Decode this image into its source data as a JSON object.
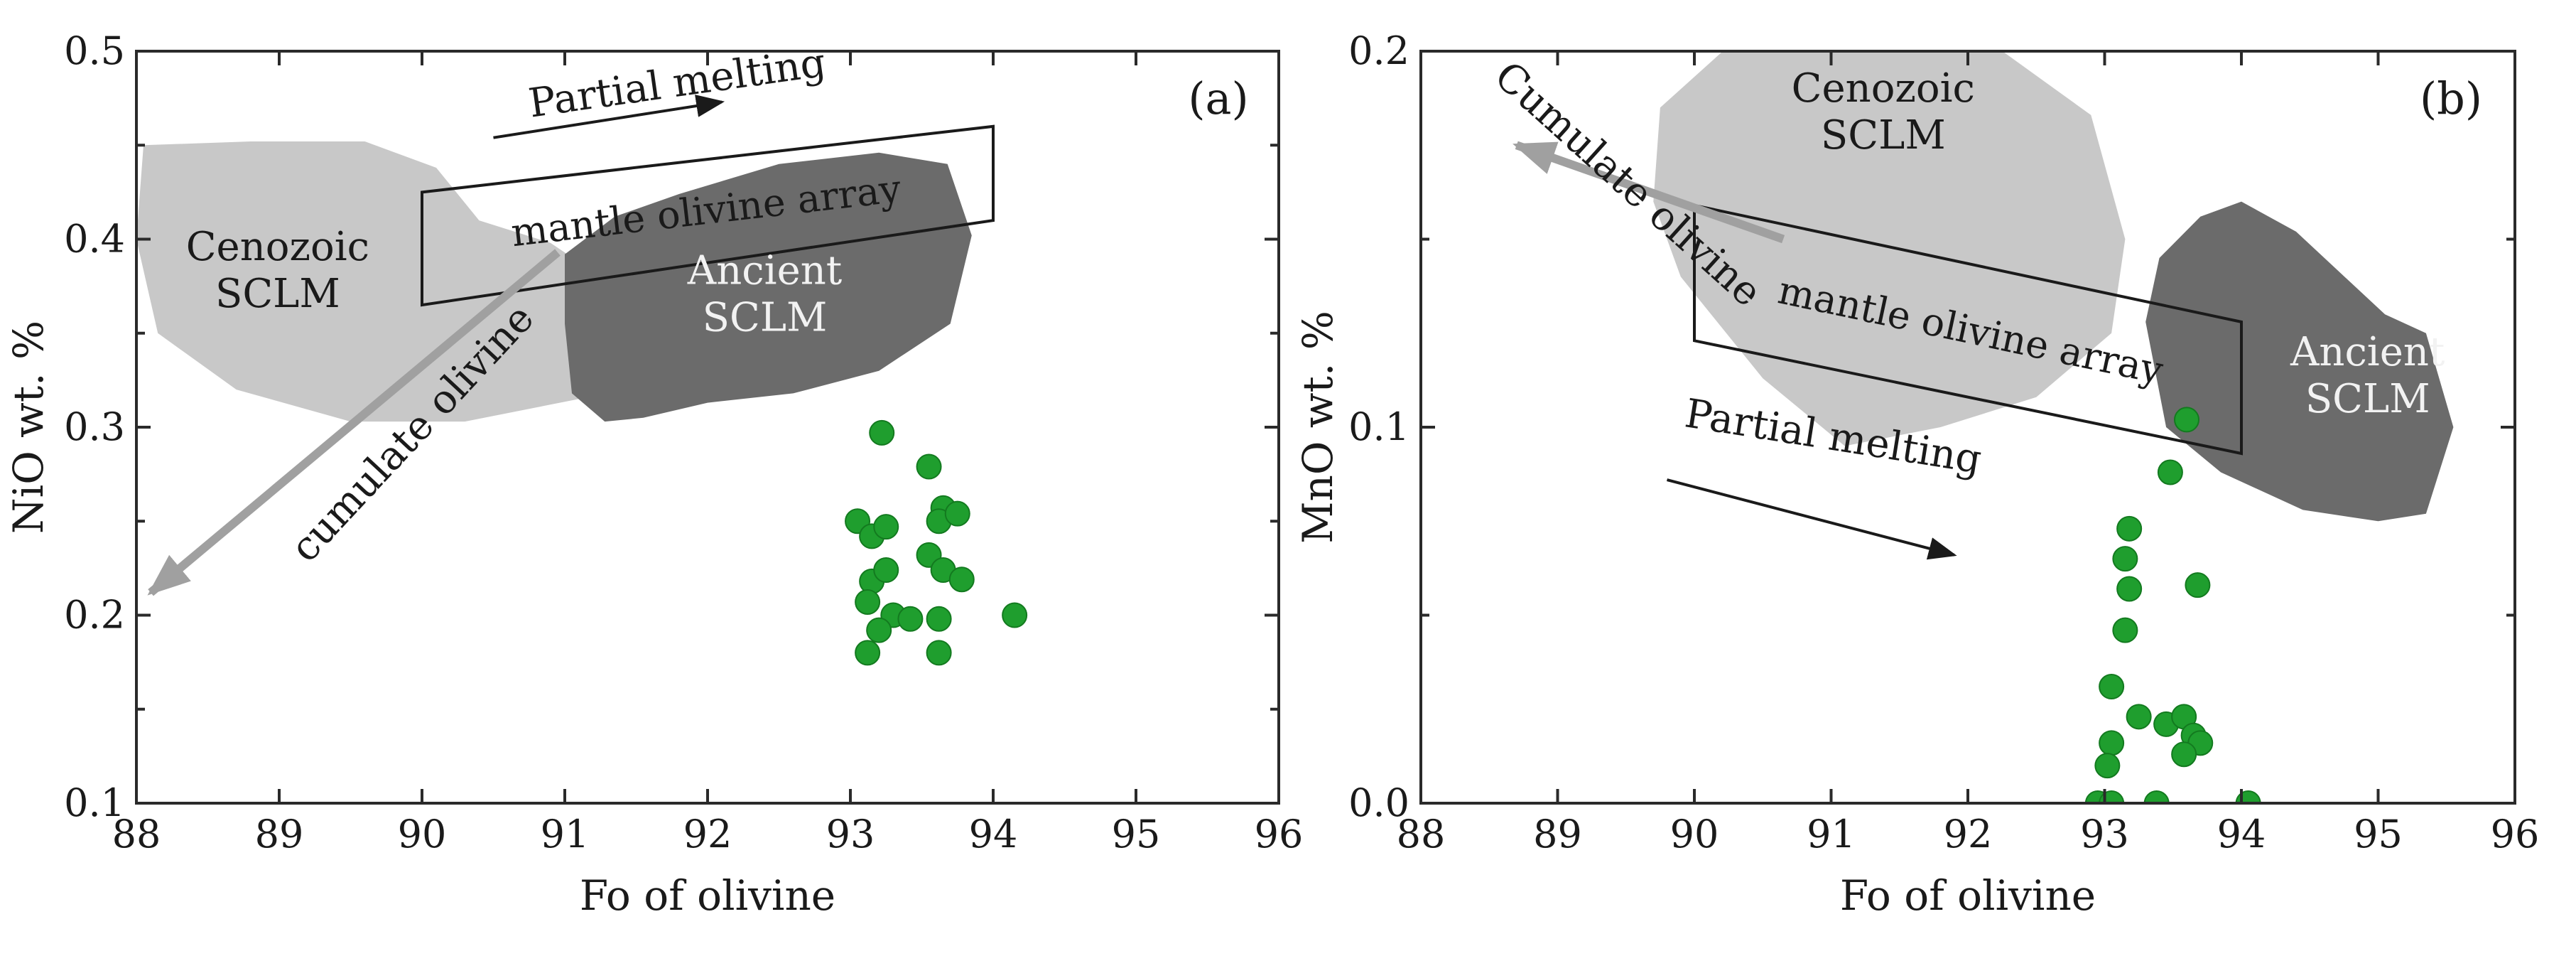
{
  "colors": {
    "point": "#1f9e2e",
    "point_edge": "#137a1f",
    "cenozoic": "#c8c8c8",
    "ancient": "#6b6b6b",
    "cumulate_arrow": "#a0a0a0",
    "text_dark": "#1a1a1a",
    "text_light": "#f2f2f2"
  },
  "chart_data": [
    {
      "panel": "(a)",
      "type": "scatter",
      "xlabel": "Fo of olivine",
      "ylabel": "NiO wt. %",
      "xlim": [
        88,
        96
      ],
      "ylim": [
        0.1,
        0.5
      ],
      "xticks": [
        88,
        89,
        90,
        91,
        92,
        93,
        94,
        95,
        96
      ],
      "yticks": [
        0.1,
        0.2,
        0.3,
        0.4,
        0.5
      ],
      "ytick_labels": [
        "0.1",
        "0.2",
        "0.3",
        "0.4",
        "0.5"
      ],
      "series": [
        {
          "name": "olivine analyses",
          "points": [
            [
              93.05,
              0.25
            ],
            [
              93.15,
              0.242
            ],
            [
              93.25,
              0.247
            ],
            [
              93.22,
              0.297
            ],
            [
              93.15,
              0.218
            ],
            [
              93.25,
              0.224
            ],
            [
              93.12,
              0.207
            ],
            [
              93.3,
              0.2
            ],
            [
              93.2,
              0.192
            ],
            [
              93.12,
              0.18
            ],
            [
              93.42,
              0.198
            ],
            [
              93.55,
              0.279
            ],
            [
              93.55,
              0.232
            ],
            [
              93.65,
              0.257
            ],
            [
              93.62,
              0.25
            ],
            [
              93.75,
              0.254
            ],
            [
              93.65,
              0.224
            ],
            [
              93.78,
              0.219
            ],
            [
              93.62,
              0.198
            ],
            [
              93.62,
              0.18
            ],
            [
              94.15,
              0.2
            ]
          ]
        }
      ],
      "fields": [
        {
          "name": "Cenozoic SCLM",
          "lines": [
            "Cenozoic",
            "SCLM"
          ],
          "polygon": [
            [
              88.05,
              0.45
            ],
            [
              88.8,
              0.452
            ],
            [
              89.6,
              0.452
            ],
            [
              90.1,
              0.438
            ],
            [
              90.4,
              0.41
            ],
            [
              90.9,
              0.398
            ],
            [
              91.35,
              0.375
            ],
            [
              91.4,
              0.338
            ],
            [
              91.1,
              0.315
            ],
            [
              90.3,
              0.303
            ],
            [
              89.5,
              0.303
            ],
            [
              88.7,
              0.32
            ],
            [
              88.15,
              0.35
            ],
            [
              88.0,
              0.4
            ]
          ]
        },
        {
          "name": "Ancient SCLM",
          "lines": [
            "Ancient",
            "SCLM"
          ],
          "polygon": [
            [
              91.0,
              0.392
            ],
            [
              91.35,
              0.412
            ],
            [
              91.8,
              0.424
            ],
            [
              92.5,
              0.44
            ],
            [
              93.2,
              0.446
            ],
            [
              93.68,
              0.44
            ],
            [
              93.85,
              0.402
            ],
            [
              93.7,
              0.355
            ],
            [
              93.2,
              0.33
            ],
            [
              92.6,
              0.318
            ],
            [
              92.0,
              0.313
            ],
            [
              91.55,
              0.305
            ],
            [
              91.28,
              0.303
            ],
            [
              91.05,
              0.318
            ],
            [
              91.0,
              0.355
            ]
          ]
        }
      ],
      "array": {
        "label": "mantle olivine array",
        "polygon": [
          [
            90.0,
            0.425
          ],
          [
            94.0,
            0.46
          ],
          [
            94.0,
            0.41
          ],
          [
            90.0,
            0.365
          ]
        ]
      },
      "annotations": [
        {
          "text": "Partial melting",
          "x": 91.8,
          "y": 0.476,
          "angle": -8,
          "arrow": [
            [
              90.5,
              0.454
            ],
            [
              92.1,
              0.473
            ]
          ],
          "style": "thin-black"
        },
        {
          "text": "cumulate olivine",
          "x": 90.0,
          "y": 0.292,
          "angle": -47,
          "arrow": [
            [
              90.95,
              0.393
            ],
            [
              88.1,
              0.212
            ]
          ],
          "style": "thick-gray"
        }
      ]
    },
    {
      "panel": "(b)",
      "type": "scatter",
      "xlabel": "Fo of olivine",
      "ylabel": "MnO wt. %",
      "xlim": [
        88,
        96
      ],
      "ylim": [
        0.0,
        0.2
      ],
      "xticks": [
        88,
        89,
        90,
        91,
        92,
        93,
        94,
        95,
        96
      ],
      "yticks": [
        0.0,
        0.1,
        0.2
      ],
      "ytick_labels": [
        "0.0",
        "0.1",
        "0.2"
      ],
      "series": [
        {
          "name": "olivine analyses",
          "points": [
            [
              93.6,
              0.102
            ],
            [
              93.48,
              0.088
            ],
            [
              93.18,
              0.073
            ],
            [
              93.15,
              0.065
            ],
            [
              93.18,
              0.057
            ],
            [
              93.68,
              0.058
            ],
            [
              93.15,
              0.046
            ],
            [
              93.05,
              0.031
            ],
            [
              93.25,
              0.023
            ],
            [
              93.45,
              0.021
            ],
            [
              93.58,
              0.023
            ],
            [
              93.65,
              0.018
            ],
            [
              93.7,
              0.016
            ],
            [
              93.58,
              0.013
            ],
            [
              93.05,
              0.016
            ],
            [
              93.02,
              0.01
            ],
            [
              92.95,
              0.0
            ],
            [
              93.05,
              0.0
            ],
            [
              93.38,
              0.0
            ],
            [
              94.05,
              0.0
            ]
          ]
        }
      ],
      "fields": [
        {
          "name": "Cenozoic SCLM",
          "lines": [
            "Cenozoic",
            "SCLM"
          ],
          "polygon": [
            [
              89.75,
              0.185
            ],
            [
              90.3,
              0.203
            ],
            [
              91.2,
              0.204
            ],
            [
              92.1,
              0.204
            ],
            [
              92.9,
              0.183
            ],
            [
              93.15,
              0.15
            ],
            [
              93.05,
              0.125
            ],
            [
              92.5,
              0.108
            ],
            [
              91.8,
              0.1
            ],
            [
              91.1,
              0.095
            ],
            [
              90.5,
              0.113
            ],
            [
              89.9,
              0.14
            ],
            [
              89.7,
              0.16
            ]
          ]
        },
        {
          "name": "Ancient SCLM",
          "lines": [
            "Ancient",
            "SCLM"
          ],
          "polygon": [
            [
              93.4,
              0.145
            ],
            [
              93.7,
              0.156
            ],
            [
              94.0,
              0.16
            ],
            [
              94.4,
              0.152
            ],
            [
              95.05,
              0.13
            ],
            [
              95.35,
              0.125
            ],
            [
              95.55,
              0.1
            ],
            [
              95.35,
              0.077
            ],
            [
              95.0,
              0.075
            ],
            [
              94.45,
              0.078
            ],
            [
              93.85,
              0.088
            ],
            [
              93.45,
              0.1
            ],
            [
              93.3,
              0.128
            ]
          ]
        }
      ],
      "array": {
        "label": "mantle olivine array",
        "polygon": [
          [
            90.0,
            0.159
          ],
          [
            94.0,
            0.128
          ],
          [
            94.0,
            0.093
          ],
          [
            90.0,
            0.123
          ]
        ]
      },
      "annotations": [
        {
          "text": "Partial melting",
          "x": 91.0,
          "y": 0.094,
          "angle": 9,
          "arrow": [
            [
              89.8,
              0.086
            ],
            [
              91.9,
              0.066
            ]
          ],
          "style": "thin-black"
        },
        {
          "text": "Cumulate olivine",
          "x": 89.45,
          "y": 0.162,
          "angle": 42,
          "arrow": [
            [
              90.65,
              0.15
            ],
            [
              88.7,
              0.175
            ]
          ],
          "style": "thick-gray"
        }
      ]
    }
  ]
}
